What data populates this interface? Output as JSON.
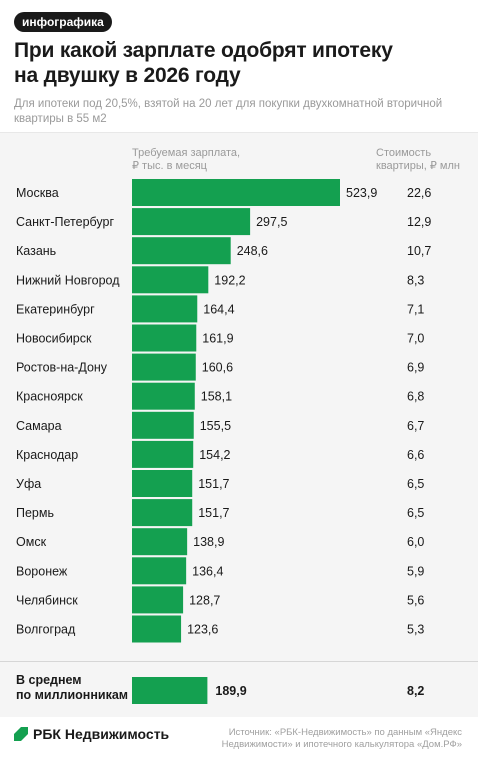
{
  "badge": "инфографика",
  "title_line1": "При какой зарплате одобрят ипотеку",
  "title_line2": "на двушку в 2026 году",
  "subtitle_line1": "Для ипотеки под 20,5%, взятой на 20 лет для покупки двухкомнатной вторичной",
  "subtitle_line2": "квартиры в 55 м2",
  "brand": "РБК Недвижимость",
  "source_line1": "Источник: «РБК-Недвижимость» по данным «Яндекс",
  "source_line2": "Недвижимости» и ипотечного калькулятора «Дом.РФ»",
  "colors": {
    "bar": "#14a050",
    "panel": "#f5f5f5",
    "text": "#1a1a1a",
    "muted": "#9a9a9a"
  },
  "chart_data": {
    "type": "bar",
    "orientation": "horizontal",
    "column_headers": {
      "salary_line1": "Требуемая зарплата,",
      "salary_line2": "₽ тыс. в месяц",
      "price_line1": "Стоимость",
      "price_line2": "квартиры, ₽ млн"
    },
    "categories": [
      "Москва",
      "Санкт-Петербург",
      "Казань",
      "Нижний Новгород",
      "Екатеринбург",
      "Новосибирск",
      "Ростов-на-Дону",
      "Красноярск",
      "Самара",
      "Краснодар",
      "Уфа",
      "Пермь",
      "Омск",
      "Воронеж",
      "Челябинск",
      "Волгоград"
    ],
    "salary_labels": [
      "523,9",
      "297,5",
      "248,6",
      "192,2",
      "164,4",
      "161,9",
      "160,6",
      "158,1",
      "155,5",
      "154,2",
      "151,7",
      "151,7",
      "138,9",
      "136,4",
      "128,7",
      "123,6"
    ],
    "salary_values": [
      523.9,
      297.5,
      248.6,
      192.2,
      164.4,
      161.9,
      160.6,
      158.1,
      155.5,
      154.2,
      151.7,
      151.7,
      138.9,
      136.4,
      128.7,
      123.6
    ],
    "price_labels": [
      "22,6",
      "12,9",
      "10,7",
      "8,3",
      "7,1",
      "7,0",
      "6,9",
      "6,8",
      "6,7",
      "6,6",
      "6,5",
      "6,5",
      "6,0",
      "5,9",
      "5,6",
      "5,3"
    ],
    "average": {
      "label_line1": "В среднем",
      "label_line2": "по миллионникам",
      "salary_label": "189,9",
      "salary_value": 189.9,
      "price_label": "8,2"
    },
    "xlim": [
      0,
      523.9
    ]
  }
}
